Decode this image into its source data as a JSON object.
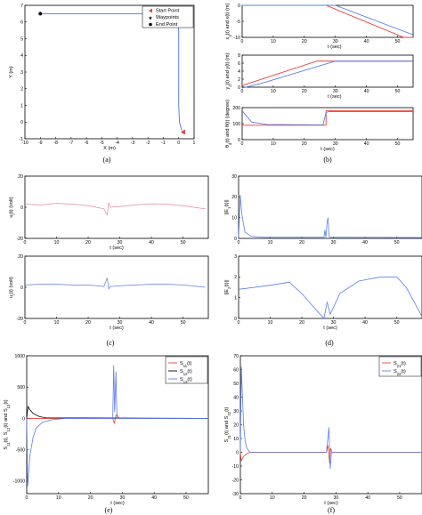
{
  "colors": {
    "red": "#e8413c",
    "blue": "#5b7fe8",
    "black": "#000000",
    "green": "#49e049",
    "pink": "#e58a9b"
  },
  "panels": {
    "a": {
      "caption": "(a)",
      "xlabel": "X (m)",
      "ylabel": "Y (m)",
      "xlim": [
        -10,
        1
      ],
      "ylim": [
        -1,
        7
      ],
      "xticks": [
        "-10",
        "-9",
        "-8",
        "-7",
        "-6",
        "-5",
        "-4",
        "-3",
        "-2",
        "-1",
        "0",
        "1"
      ],
      "yticks": [
        "-1",
        "0",
        "1",
        "2",
        "3",
        "4",
        "5",
        "6",
        "7"
      ],
      "legend": [
        "Start Point",
        "Waypoints",
        "End Point"
      ],
      "path_x": [
        0.2,
        0.05,
        0.0,
        0.0,
        -0.05,
        -0.4,
        -9.0
      ],
      "path_y": [
        -0.5,
        0.0,
        1.0,
        5.5,
        6.1,
        6.5,
        6.5
      ],
      "start": [
        0.3,
        -0.6
      ],
      "waypoint": [
        0.0,
        6.5
      ],
      "end": [
        -9.0,
        6.5
      ]
    },
    "b1": {
      "ylabel": "x_d(t) and x(t) (m)",
      "xlim": [
        0,
        55
      ],
      "ylim": [
        -10,
        0
      ],
      "xticks": [
        "0",
        "10",
        "20",
        "30",
        "40",
        "50"
      ],
      "yticks": [
        "-10",
        "-5",
        "0"
      ],
      "red_x": [
        0,
        27,
        52,
        55
      ],
      "red_y": [
        0,
        0,
        -10,
        -10
      ],
      "blue_x": [
        0,
        30,
        55
      ],
      "blue_y": [
        0,
        0,
        -9.2
      ]
    },
    "b2": {
      "ylabel": "y_d(t) and y(t) (m)",
      "xlim": [
        0,
        55
      ],
      "ylim": [
        0,
        8
      ],
      "xticks": [
        "0",
        "10",
        "20",
        "30",
        "40",
        "50"
      ],
      "yticks": [
        "0",
        "2",
        "4",
        "6",
        "8"
      ],
      "red_x": [
        0,
        24,
        55
      ],
      "red_y": [
        0.4,
        6.5,
        6.5
      ],
      "blue_x": [
        0,
        6,
        30,
        55
      ],
      "blue_y": [
        -0.2,
        0.9,
        6.5,
        6.5
      ]
    },
    "b3": {
      "ylabel": "θ_d(t) and θ(t) (degree)",
      "xlabel": "t (sec)",
      "xlim": [
        0,
        55
      ],
      "ylim": [
        0,
        200
      ],
      "xticks": [
        "0",
        "10",
        "20",
        "30",
        "40",
        "50"
      ],
      "yticks": [
        "0",
        "100",
        "200"
      ],
      "red_x": [
        0,
        4,
        27,
        27,
        55
      ],
      "red_y": [
        90,
        90,
        90,
        180,
        180
      ],
      "blue_x": [
        0,
        3,
        8,
        26,
        27,
        28,
        55
      ],
      "blue_y": [
        180,
        110,
        95,
        92,
        170,
        175,
        175
      ]
    },
    "caption_b": "(b)",
    "c1": {
      "ylabel": "u_l(t) (volt)",
      "xlim": [
        0,
        58
      ],
      "ylim": [
        -20,
        20
      ],
      "xticks": [
        "0",
        "10",
        "20",
        "30",
        "40",
        "50"
      ],
      "yticks": [
        "-20",
        "0",
        "20"
      ],
      "x": [
        0,
        5,
        10,
        15,
        20,
        25,
        26,
        26.5,
        27,
        30,
        35,
        40,
        45,
        50,
        55,
        57
      ],
      "y": [
        2,
        1.5,
        2.5,
        2,
        1,
        -1,
        -5,
        3,
        0,
        0.5,
        1.5,
        2.2,
        2,
        1,
        -0.5,
        -1
      ]
    },
    "c2": {
      "ylabel": "u_r(t) (volt)",
      "xlabel": "t (sec)",
      "xlim": [
        0,
        58
      ],
      "ylim": [
        -20,
        20
      ],
      "xticks": [
        "0",
        "10",
        "20",
        "30",
        "40",
        "50"
      ],
      "yticks": [
        "-20",
        "0",
        "20"
      ],
      "x": [
        0,
        5,
        10,
        15,
        20,
        25,
        26,
        26.5,
        27,
        30,
        35,
        40,
        45,
        50,
        55,
        57
      ],
      "y": [
        1.5,
        2,
        2,
        1.5,
        1.5,
        0.5,
        6,
        -1,
        0.5,
        1,
        1.5,
        2,
        2,
        1.5,
        0.5,
        0
      ]
    },
    "caption_c": "(c)",
    "d1": {
      "ylabel": "||E_1(t)||",
      "xlim": [
        0,
        58
      ],
      "ylim": [
        0,
        30
      ],
      "xticks": [
        "0",
        "10",
        "20",
        "30",
        "40",
        "50"
      ],
      "yticks": [
        "0",
        "10",
        "20",
        "30"
      ],
      "x": [
        0,
        0.5,
        1,
        2,
        4,
        8,
        27,
        27.3,
        27.6,
        28,
        28.3,
        28.6,
        29,
        35,
        58
      ],
      "y": [
        0,
        21,
        12,
        3,
        1,
        0.5,
        0.5,
        4,
        0.5,
        8,
        10,
        1,
        0.5,
        0.5,
        0.4
      ]
    },
    "d2": {
      "ylabel": "||E_2(t)||",
      "xlabel": "t (sec)",
      "xlim": [
        0,
        58
      ],
      "ylim": [
        0,
        3
      ],
      "xticks": [
        "0",
        "10",
        "20",
        "30",
        "40",
        "50"
      ],
      "yticks": [
        "0",
        "1",
        "2",
        "3"
      ],
      "x": [
        0,
        10,
        16,
        20,
        24,
        27,
        28,
        29,
        32,
        38,
        45,
        50,
        53,
        58
      ],
      "y": [
        1.4,
        1.6,
        1.75,
        1.2,
        0.5,
        0.0,
        0.8,
        0.2,
        1.2,
        1.8,
        2.0,
        2.0,
        1.5,
        0.1
      ]
    },
    "caption_d": "(d)",
    "e": {
      "ylabel": "S_11(t), S_12(t) and S_13(t)",
      "xlabel": "t (sec)",
      "xlim": [
        0,
        57
      ],
      "ylim": [
        -1200,
        1000
      ],
      "xticks": [
        "0",
        "10",
        "20",
        "30",
        "40",
        "50"
      ],
      "yticks": [
        "-1000",
        "-500",
        "0",
        "500",
        "1000"
      ],
      "legend": [
        "S_11(t)",
        "S_12(t)",
        "S_13(t)"
      ],
      "s11_x": [
        0,
        27,
        27.5,
        28,
        28.3,
        29,
        57
      ],
      "s11_y": [
        0,
        0,
        -80,
        50,
        60,
        0,
        0
      ],
      "s12_x": [
        0,
        0.4,
        1,
        2,
        4,
        6,
        57
      ],
      "s12_y": [
        0,
        190,
        140,
        80,
        30,
        10,
        0
      ],
      "s13_x": [
        0,
        0.3,
        1,
        2,
        3,
        5,
        8,
        12,
        27,
        27.3,
        27.6,
        28,
        28.3,
        29,
        57
      ],
      "s13_y": [
        0,
        -1080,
        -600,
        -300,
        -150,
        -60,
        -20,
        0,
        0,
        850,
        100,
        750,
        0,
        0,
        0
      ]
    },
    "caption_e": "(e)",
    "f": {
      "ylabel": "S_21(t) and S_22(t)",
      "xlabel": "t (sec)",
      "xlim": [
        0,
        57
      ],
      "ylim": [
        -30,
        70
      ],
      "xticks": [
        "0",
        "10",
        "20",
        "30",
        "40",
        "50"
      ],
      "yticks": [
        "-30",
        "-20",
        "-10",
        "0",
        "10",
        "20",
        "30",
        "40",
        "50",
        "60",
        "70"
      ],
      "legend": [
        "S_21(t)",
        "S_22(t)"
      ],
      "s21_x": [
        0,
        0.3,
        1,
        2,
        3,
        27,
        27.5,
        28,
        28.3,
        28.8,
        57
      ],
      "s21_y": [
        0,
        -6,
        -3,
        -1,
        0,
        0,
        5,
        -8,
        3,
        0,
        0
      ],
      "s22_x": [
        0,
        0.3,
        1,
        1.5,
        2,
        3,
        27,
        27.8,
        28.2,
        28.6,
        57
      ],
      "s22_y": [
        0,
        62,
        20,
        8,
        3,
        0,
        0,
        18,
        -12,
        0,
        0
      ]
    },
    "caption_f": "(f)"
  }
}
